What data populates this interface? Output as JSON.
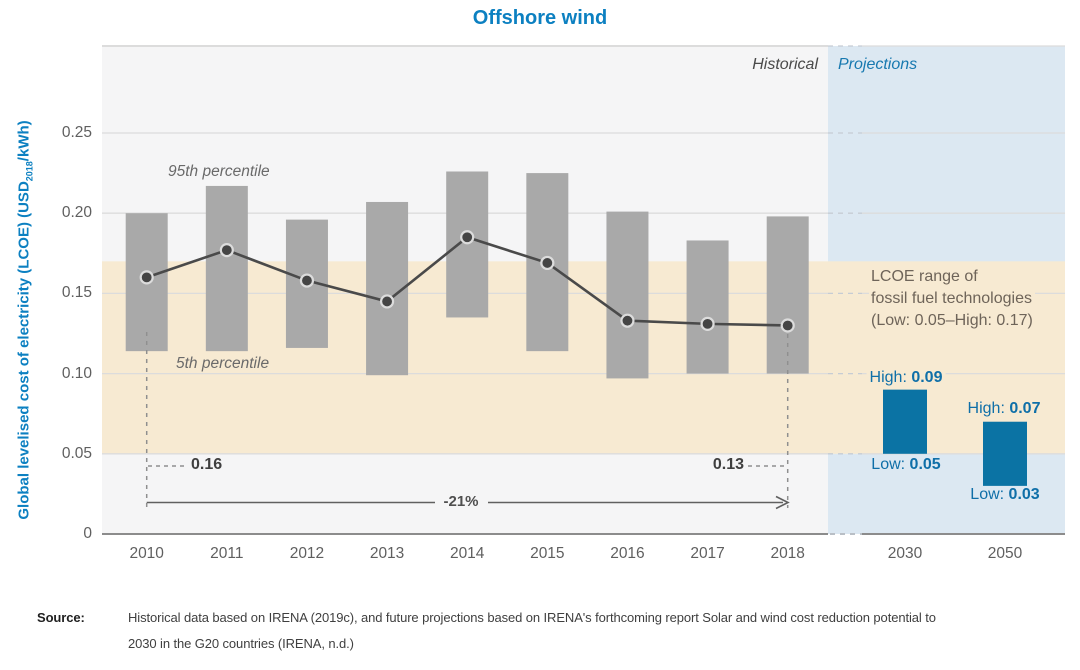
{
  "title": "Offshore wind",
  "y_axis": {
    "label_pre": "Global levelised cost of electricity (LCOE) (USD",
    "label_sub": "2018",
    "label_post": "/kWh)"
  },
  "panel_labels": {
    "historical": "Historical",
    "projections": "Projections"
  },
  "annotations": {
    "p95": "95th percentile",
    "p5": "5th percentile",
    "start_value": "0.16",
    "end_value": "0.13",
    "pct_change": "-21%",
    "band_line1": "LCOE range of",
    "band_line2": "fossil fuel technologies",
    "band_line3": "(Low: 0.05–High: 0.17)"
  },
  "chart_data": {
    "type": "bar",
    "subtype": "range-bars with weighted-average line and projection bars",
    "title": "Offshore wind",
    "ylabel": "Global levelised cost of electricity (LCOE) (USD2018/kWh)",
    "ylim": [
      0,
      0.305
    ],
    "gridlines": [
      0.05,
      0.1,
      0.15,
      0.2,
      0.25
    ],
    "grid": true,
    "y_ticks": [
      {
        "v": 0.25,
        "label": "0.25"
      },
      {
        "v": 0.2,
        "label": "0.20"
      },
      {
        "v": 0.15,
        "label": "0.15"
      },
      {
        "v": 0.1,
        "label": "0.10"
      },
      {
        "v": 0.05,
        "label": "0.05"
      },
      {
        "v": 0,
        "label": "0"
      }
    ],
    "historical": {
      "years": [
        "2010",
        "2011",
        "2012",
        "2013",
        "2014",
        "2015",
        "2016",
        "2017",
        "2018"
      ],
      "p5": [
        0.114,
        0.114,
        0.116,
        0.099,
        0.135,
        0.114,
        0.097,
        0.1,
        0.1
      ],
      "p95": [
        0.2,
        0.217,
        0.196,
        0.207,
        0.226,
        0.225,
        0.201,
        0.183,
        0.198
      ],
      "weighted_avg": [
        0.16,
        0.177,
        0.158,
        0.145,
        0.185,
        0.169,
        0.133,
        0.131,
        0.13
      ]
    },
    "projections": [
      {
        "year": "2030",
        "low": 0.05,
        "high": 0.09,
        "high_prefix": "High: ",
        "high_value": "0.09",
        "low_prefix": "Low: ",
        "low_value": "0.05"
      },
      {
        "year": "2050",
        "low": 0.03,
        "high": 0.07,
        "high_prefix": "High: ",
        "high_value": "0.07",
        "low_prefix": "Low: ",
        "low_value": "0.03"
      }
    ],
    "fossil_fuel_band": {
      "low": 0.05,
      "high": 0.17
    },
    "callouts": {
      "start": {
        "year": "2010",
        "value": 0.16
      },
      "end": {
        "year": "2018",
        "value": 0.13
      },
      "change_pct": -21
    }
  },
  "colors": {
    "title_blue": "#0c80c1",
    "historical_bg": "#f5f5f6",
    "projections_bg": "#dce8f2",
    "fossil_band": "#f7ead2",
    "bar_gray": "#a9a9a9",
    "projection_bar_blue": "#0b73a4",
    "projection_text_blue": "#0f6fa8",
    "avg_line": "#4a4a4a",
    "marker_fill": "#454545",
    "marker_ring": "#dcdcdc",
    "grid": "#dcdcdc",
    "grid_dash": "#c6ccd4",
    "axis": "#8c8c8c",
    "annotation_dash": "#8f8f8f",
    "arrow": "#606060"
  },
  "source": {
    "label": "Source:",
    "line1": "Historical data based on IRENA (2019c), and future projections based on IRENA's forthcoming report Solar and wind cost reduction potential to",
    "line2": "2030 in the G20 countries (IRENA, n.d.)"
  }
}
